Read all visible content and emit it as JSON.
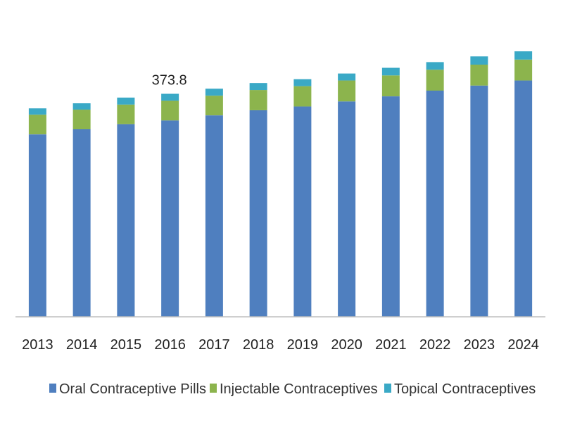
{
  "chart_data": {
    "type": "bar",
    "stacked": true,
    "categories": [
      "2013",
      "2014",
      "2015",
      "2016",
      "2017",
      "2018",
      "2019",
      "2020",
      "2021",
      "2022",
      "2023",
      "2024"
    ],
    "series": [
      {
        "name": "Oral Contraceptive Pills",
        "color": "#4F7FBF",
        "values": [
          288,
          296,
          304,
          310,
          318,
          326,
          332,
          340,
          348,
          357,
          365,
          373
        ]
      },
      {
        "name": "Injectable Contraceptives",
        "color": "#8CB44D",
        "values": [
          31,
          31,
          31,
          31,
          31,
          32,
          32,
          33,
          33,
          33,
          33,
          33
        ]
      },
      {
        "name": "Topical Contraceptives",
        "color": "#3AA9C6",
        "values": [
          10,
          10,
          11,
          11,
          11,
          11,
          11,
          11,
          12,
          12,
          13,
          13
        ]
      }
    ],
    "annotations": [
      {
        "category": "2016",
        "text": "373.8"
      }
    ],
    "ylim": [
      0,
      500
    ],
    "grid": false,
    "legend": "bottom"
  }
}
